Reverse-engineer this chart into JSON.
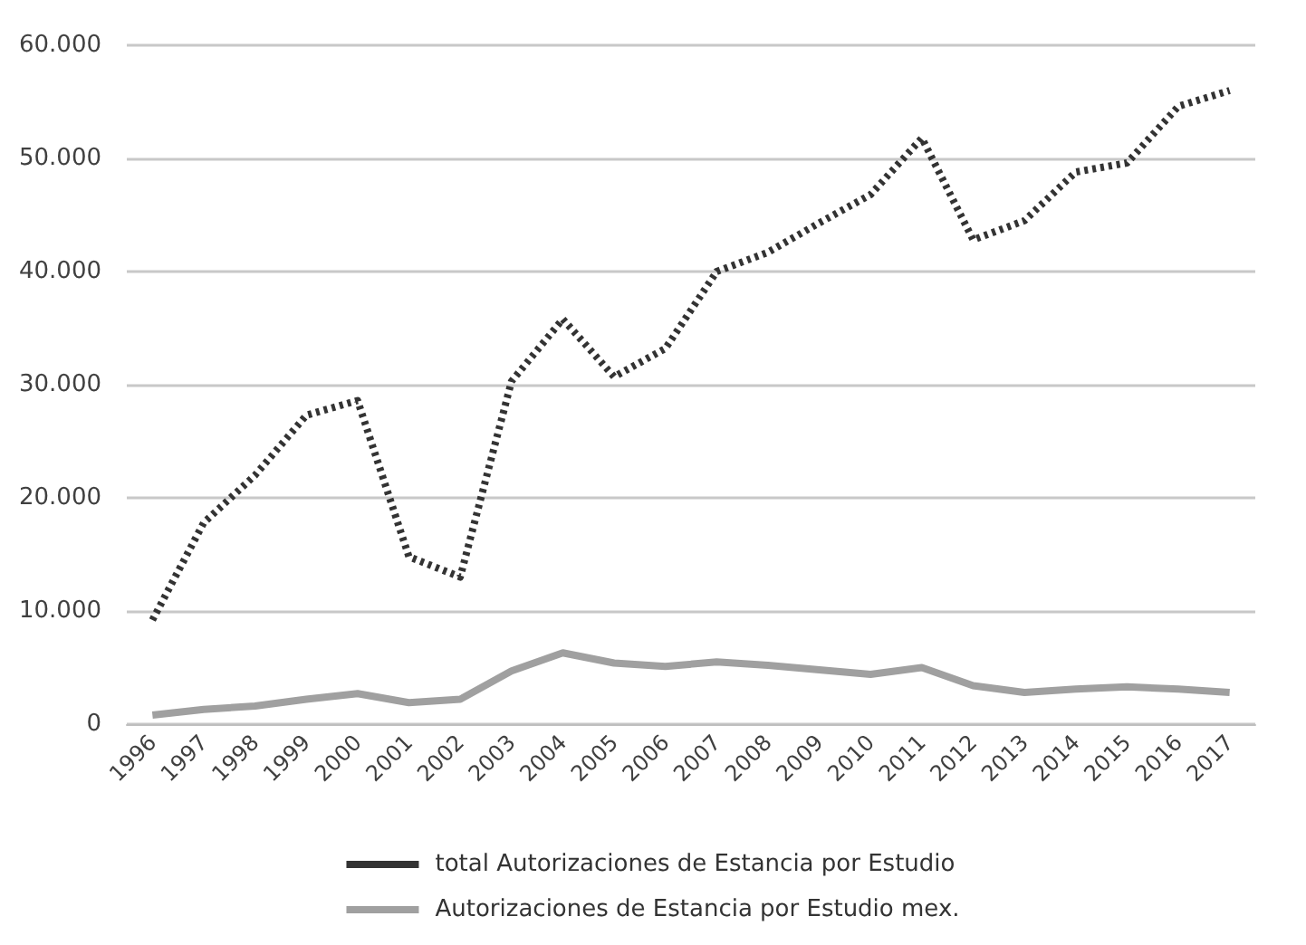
{
  "chart_data": {
    "type": "line",
    "categories": [
      "1996",
      "1997",
      "1998",
      "1999",
      "2000",
      "2001",
      "2002",
      "2003",
      "2004",
      "2005",
      "2006",
      "2007",
      "2008",
      "2009",
      "2010",
      "2011",
      "2012",
      "2013",
      "2014",
      "2015",
      "2016",
      "2017"
    ],
    "series": [
      {
        "name": "total Autorizaciones de Estancia por Estudio",
        "color": "#333333",
        "line_style": "dotted",
        "values": [
          9200,
          17800,
          22000,
          27300,
          28600,
          14800,
          13000,
          30300,
          35800,
          30700,
          33200,
          40000,
          41700,
          44300,
          46800,
          51800,
          42800,
          44500,
          48800,
          49600,
          54600,
          56000
        ]
      },
      {
        "name": "Autorizaciones de Estancia por Estudio mex.",
        "color": "#a0a0a0",
        "line_style": "solid",
        "values": [
          800,
          1300,
          1600,
          2200,
          2700,
          1900,
          2200,
          4700,
          6300,
          5400,
          5100,
          5500,
          5200,
          4800,
          4400,
          5000,
          3400,
          2800,
          3100,
          3300,
          3100,
          2800
        ]
      }
    ],
    "ylim": [
      0,
      60000
    ],
    "yticks": [
      {
        "value": 0,
        "label": "0"
      },
      {
        "value": 10000,
        "label": "10.000"
      },
      {
        "value": 20000,
        "label": "20.000"
      },
      {
        "value": 30000,
        "label": "30.000"
      },
      {
        "value": 40000,
        "label": "40.000"
      },
      {
        "value": 50000,
        "label": "50.000"
      },
      {
        "value": 60000,
        "label": "60.000"
      }
    ],
    "grid": "y",
    "legend": "bottom",
    "marker": "none"
  }
}
